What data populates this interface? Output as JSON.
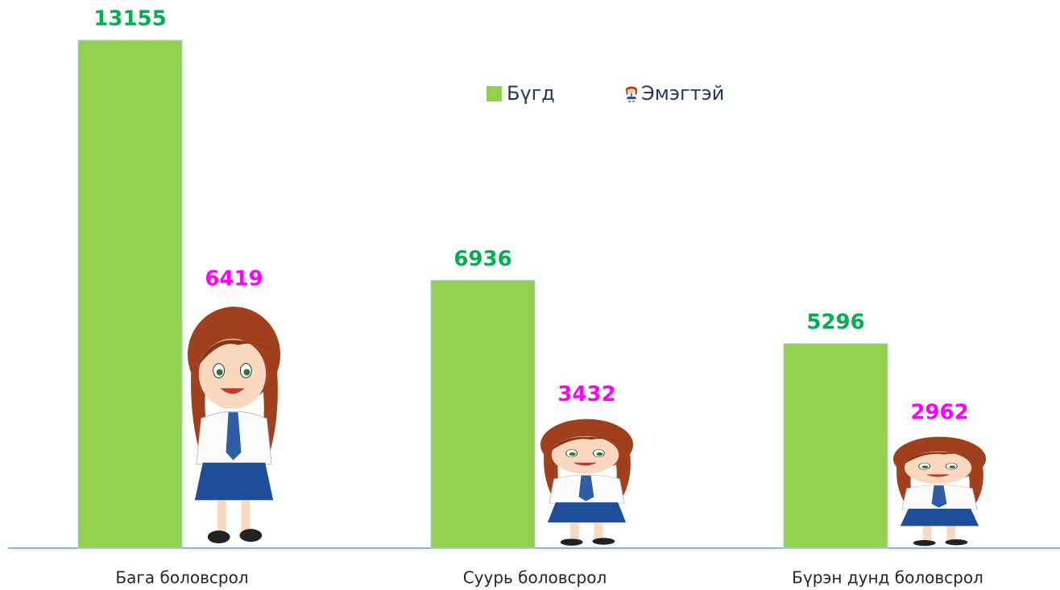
{
  "chart_data": {
    "type": "pictorial-bar",
    "categories": [
      "Бага боловсрол",
      "Суурь боловсрол",
      "Бүрэн дунд боловсрол"
    ],
    "series": [
      {
        "name": "Бүгд",
        "color": "#92d050",
        "label_color": "#00b050",
        "values": [
          13155,
          6936,
          5296
        ]
      },
      {
        "name": "Эмэгтэй",
        "color": "#1f4e99",
        "label_color": "#ff00ff",
        "values": [
          6419,
          3432,
          2962
        ]
      }
    ]
  }
}
